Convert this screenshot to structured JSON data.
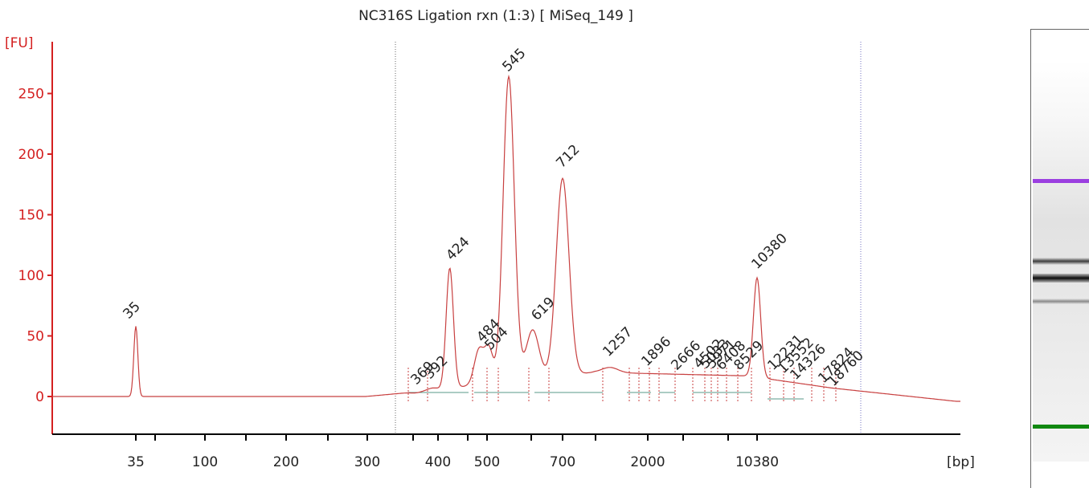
{
  "chart_data": {
    "type": "line",
    "title": "NC316S Ligation rxn (1:3)  [ MiSeq_149 ]",
    "ylabel": "[FU]",
    "xlabel": "[bp]",
    "y_ticks": [
      0,
      50,
      100,
      150,
      200,
      250
    ],
    "x_ticks": [
      "35",
      "100",
      "200",
      "300",
      "400",
      "500",
      "700",
      "2000",
      "10380"
    ],
    "ylim": [
      -30,
      290
    ],
    "x_scale": "ladder (non-linear)",
    "colors": {
      "axis": "#d42020",
      "trace": "#c84040",
      "baseline": "#5a9a8a",
      "lower_marker": "#118811",
      "upper_marker": "#9b3fe0"
    },
    "peaks": [
      {
        "label": "35",
        "x": 35,
        "y": 58,
        "color": "#118811"
      },
      {
        "label": "369",
        "x": 369,
        "y": 3,
        "color": "#222"
      },
      {
        "label": "392",
        "x": 392,
        "y": 7,
        "color": "#222"
      },
      {
        "label": "424",
        "x": 424,
        "y": 106,
        "color": "#222"
      },
      {
        "label": "484",
        "x": 484,
        "y": 39,
        "color": "#222"
      },
      {
        "label": "504",
        "x": 504,
        "y": 38,
        "color": "#222"
      },
      {
        "label": "545",
        "x": 545,
        "y": 264,
        "color": "#222"
      },
      {
        "label": "619",
        "x": 619,
        "y": 55,
        "color": "#222"
      },
      {
        "label": "712",
        "x": 712,
        "y": 180,
        "color": "#222"
      },
      {
        "label": "1257",
        "x": 1257,
        "y": 24,
        "color": "#222"
      },
      {
        "label": "1896",
        "x": 1896,
        "y": 19,
        "color": "#222"
      },
      {
        "label": "2666",
        "x": 2666,
        "y": 19,
        "color": "#222"
      },
      {
        "label": "4502",
        "x": 4502,
        "y": 18,
        "color": "#222"
      },
      {
        "label": "5033",
        "x": 5033,
        "y": 18,
        "color": "#222"
      },
      {
        "label": "5971",
        "x": 5971,
        "y": 18,
        "color": "#222"
      },
      {
        "label": "6408",
        "x": 6408,
        "y": 18,
        "color": "#222"
      },
      {
        "label": "8529",
        "x": 8529,
        "y": 18,
        "color": "#222"
      },
      {
        "label": "10380",
        "x": 10380,
        "y": 98,
        "color": "#9b3fe0"
      },
      {
        "label": "12231",
        "x": 12231,
        "y": 16,
        "color": "#222"
      },
      {
        "label": "13552",
        "x": 13552,
        "y": 14,
        "color": "#222"
      },
      {
        "label": "14326",
        "x": 14326,
        "y": 12,
        "color": "#222"
      },
      {
        "label": "17824",
        "x": 17824,
        "y": 9,
        "color": "#222"
      },
      {
        "label": "18760",
        "x": 18760,
        "y": 8,
        "color": "#222"
      }
    ],
    "gel_bands": [
      {
        "name": "upper-marker-band",
        "color": "#9b3fe0",
        "strength": "strong"
      },
      {
        "name": "band-712",
        "color": "#444444",
        "strength": "medium"
      },
      {
        "name": "band-545",
        "color": "#111111",
        "strength": "strong"
      },
      {
        "name": "band-424",
        "color": "#888888",
        "strength": "weak"
      },
      {
        "name": "lower-marker-band",
        "color": "#118811",
        "strength": "strong"
      }
    ]
  }
}
